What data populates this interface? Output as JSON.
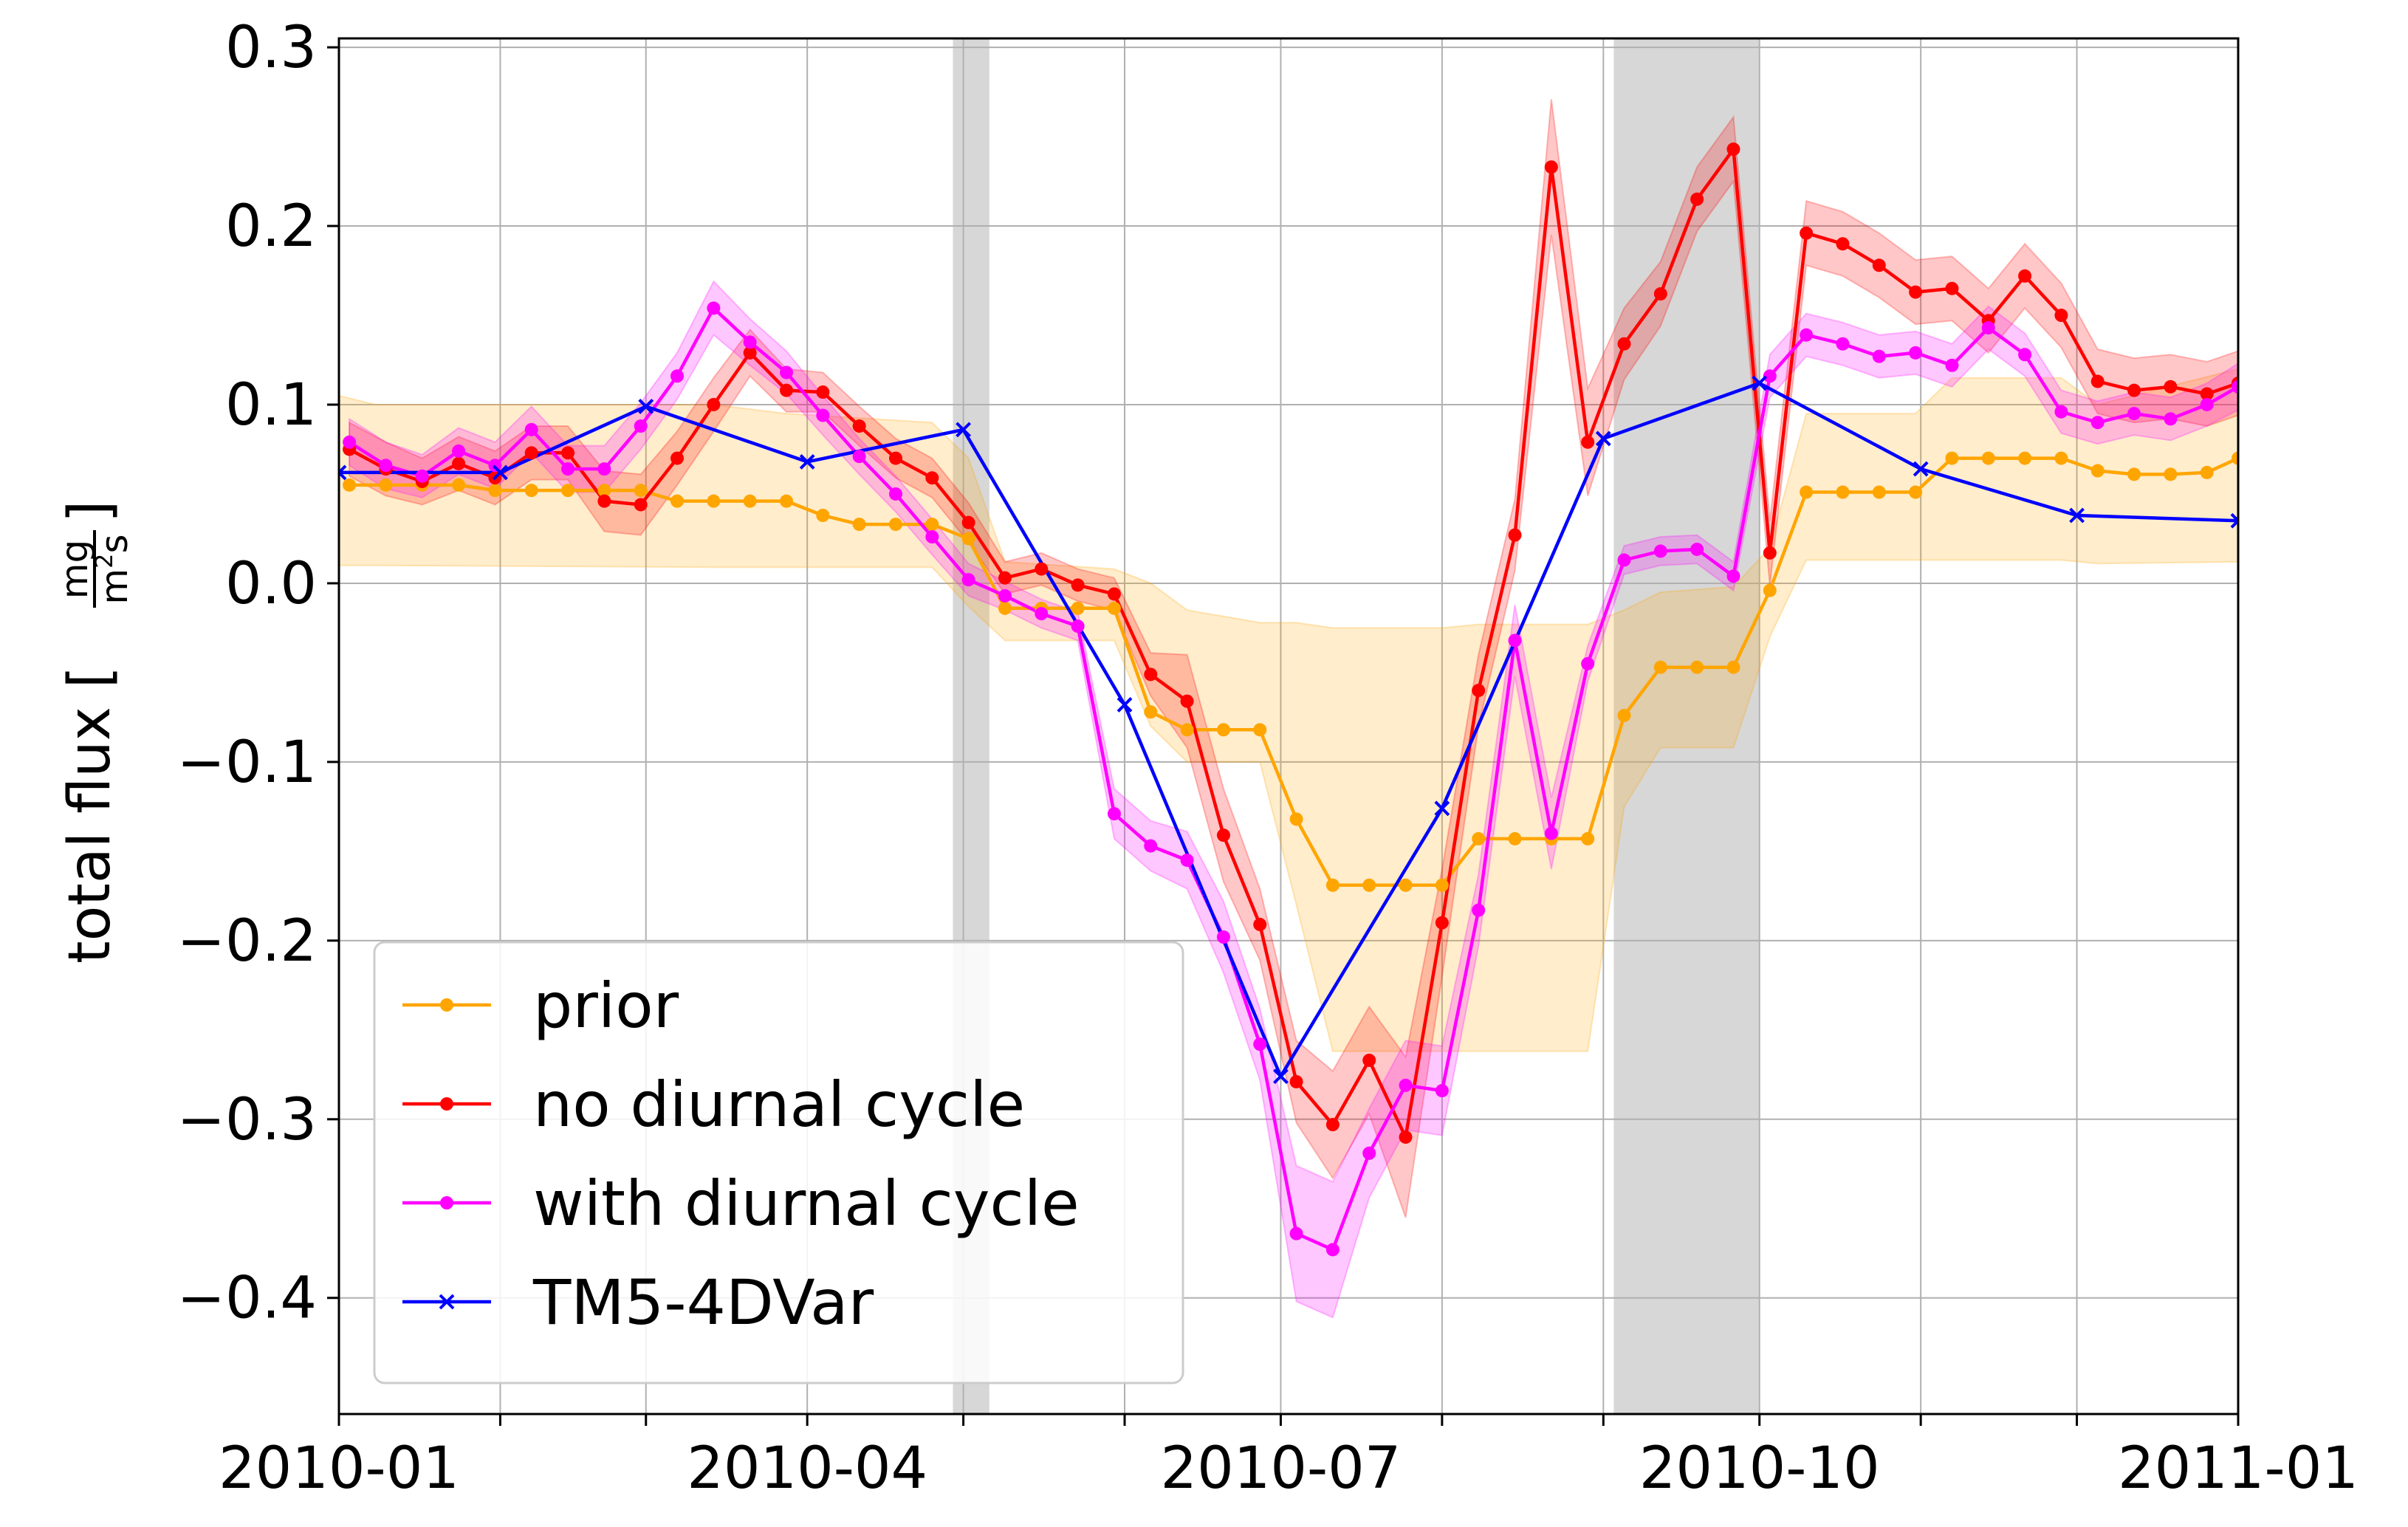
{
  "chart_data": {
    "type": "line",
    "title": "",
    "xlabel": "",
    "ylabel": {
      "prefix": "total flux [",
      "numerator": "mg",
      "denominator_base": "m",
      "denominator_exp": "2",
      "denominator_tail": "s",
      "suffix": "]"
    },
    "xlim": [
      "2010-01-01",
      "2011-01-01"
    ],
    "ylim": [
      -0.465,
      0.305
    ],
    "x_ticks": [
      {
        "date": "2010-01-01",
        "label": "2010-01"
      },
      {
        "date": "2010-04-01",
        "label": "2010-04"
      },
      {
        "date": "2010-07-01",
        "label": "2010-07"
      },
      {
        "date": "2010-10-01",
        "label": "2010-10"
      },
      {
        "date": "2011-01-01",
        "label": "2011-01"
      }
    ],
    "x_minor_ticks": [
      "2010-02-01",
      "2010-03-01",
      "2010-05-01",
      "2010-06-01",
      "2010-08-01",
      "2010-09-01",
      "2010-11-01",
      "2010-12-01"
    ],
    "y_ticks": [
      {
        "value": 0.3,
        "label": "0.3"
      },
      {
        "value": 0.2,
        "label": "0.2"
      },
      {
        "value": 0.1,
        "label": "0.1"
      },
      {
        "value": 0.0,
        "label": "0.0"
      },
      {
        "value": -0.1,
        "label": "−0.1"
      },
      {
        "value": -0.2,
        "label": "−0.2"
      },
      {
        "value": -0.3,
        "label": "−0.3"
      },
      {
        "value": -0.4,
        "label": "−0.4"
      }
    ],
    "grid": true,
    "legend_position": "bottom-left",
    "shaded_periods": [
      {
        "start": "2010-04-29",
        "end": "2010-05-06"
      },
      {
        "start": "2010-09-03",
        "end": "2010-10-01"
      }
    ],
    "series": [
      {
        "name": "prior",
        "color": "#ffa500",
        "marker": "dot",
        "points": [
          [
            "2010-01-03",
            0.055
          ],
          [
            "2010-01-10",
            0.055
          ],
          [
            "2010-01-17",
            0.055
          ],
          [
            "2010-01-24",
            0.055
          ],
          [
            "2010-01-31",
            0.052
          ],
          [
            "2010-02-07",
            0.052
          ],
          [
            "2010-02-14",
            0.052
          ],
          [
            "2010-02-21",
            0.052
          ],
          [
            "2010-02-28",
            0.052
          ],
          [
            "2010-03-07",
            0.046
          ],
          [
            "2010-03-14",
            0.046
          ],
          [
            "2010-03-21",
            0.046
          ],
          [
            "2010-03-28",
            0.046
          ],
          [
            "2010-04-04",
            0.038
          ],
          [
            "2010-04-11",
            0.033
          ],
          [
            "2010-04-18",
            0.033
          ],
          [
            "2010-04-25",
            0.033
          ],
          [
            "2010-05-02",
            0.025
          ],
          [
            "2010-05-09",
            -0.014
          ],
          [
            "2010-05-16",
            -0.014
          ],
          [
            "2010-05-23",
            -0.014
          ],
          [
            "2010-05-30",
            -0.014
          ],
          [
            "2010-06-06",
            -0.072
          ],
          [
            "2010-06-13",
            -0.082
          ],
          [
            "2010-06-20",
            -0.082
          ],
          [
            "2010-06-27",
            -0.082
          ],
          [
            "2010-07-04",
            -0.132
          ],
          [
            "2010-07-11",
            -0.169
          ],
          [
            "2010-07-18",
            -0.169
          ],
          [
            "2010-07-25",
            -0.169
          ],
          [
            "2010-08-01",
            -0.169
          ],
          [
            "2010-08-08",
            -0.143
          ],
          [
            "2010-08-15",
            -0.143
          ],
          [
            "2010-08-22",
            -0.143
          ],
          [
            "2010-08-29",
            -0.143
          ],
          [
            "2010-09-05",
            -0.074
          ],
          [
            "2010-09-12",
            -0.047
          ],
          [
            "2010-09-19",
            -0.047
          ],
          [
            "2010-09-26",
            -0.047
          ],
          [
            "2010-10-03",
            -0.004
          ],
          [
            "2010-10-10",
            0.051
          ],
          [
            "2010-10-17",
            0.051
          ],
          [
            "2010-10-24",
            0.051
          ],
          [
            "2010-10-31",
            0.051
          ],
          [
            "2010-11-07",
            0.07
          ],
          [
            "2010-11-14",
            0.07
          ],
          [
            "2010-11-21",
            0.07
          ],
          [
            "2010-11-28",
            0.07
          ],
          [
            "2010-12-05",
            0.063
          ],
          [
            "2010-12-12",
            0.061
          ],
          [
            "2010-12-19",
            0.061
          ],
          [
            "2010-12-26",
            0.062
          ],
          [
            "2011-01-01",
            0.07
          ]
        ],
        "band": [
          [
            "2010-01-01",
            0.01,
            0.105
          ],
          [
            "2010-01-08",
            0.01,
            0.1
          ],
          [
            "2010-03-14",
            0.009,
            0.1
          ],
          [
            "2010-03-28",
            0.009,
            0.095
          ],
          [
            "2010-04-25",
            0.009,
            0.09
          ],
          [
            "2010-05-02",
            -0.013,
            0.07
          ],
          [
            "2010-05-09",
            -0.032,
            0.012
          ],
          [
            "2010-05-30",
            -0.032,
            0.008
          ],
          [
            "2010-06-06",
            -0.08,
            -0.0
          ],
          [
            "2010-06-13",
            -0.1,
            -0.015
          ],
          [
            "2010-06-27",
            -0.1,
            -0.022
          ],
          [
            "2010-07-04",
            -0.18,
            -0.022
          ],
          [
            "2010-07-11",
            -0.262,
            -0.025
          ],
          [
            "2010-08-01",
            -0.262,
            -0.025
          ],
          [
            "2010-08-08",
            -0.262,
            -0.023
          ],
          [
            "2010-08-29",
            -0.262,
            -0.023
          ],
          [
            "2010-09-05",
            -0.125,
            -0.015
          ],
          [
            "2010-09-12",
            -0.092,
            -0.005
          ],
          [
            "2010-09-26",
            -0.092,
            -0.002
          ],
          [
            "2010-10-03",
            -0.03,
            0.02
          ],
          [
            "2010-10-10",
            0.013,
            0.095
          ],
          [
            "2010-10-31",
            0.013,
            0.095
          ],
          [
            "2010-11-07",
            0.013,
            0.115
          ],
          [
            "2010-11-28",
            0.013,
            0.115
          ],
          [
            "2010-12-05",
            0.011,
            0.1
          ],
          [
            "2011-01-01",
            0.012,
            0.12
          ]
        ]
      },
      {
        "name": "no diurnal cycle",
        "color": "#ff0000",
        "marker": "dot",
        "points": [
          [
            "2010-01-03",
            0.075
          ],
          [
            "2010-01-10",
            0.064
          ],
          [
            "2010-01-17",
            0.057
          ],
          [
            "2010-01-24",
            0.067
          ],
          [
            "2010-01-31",
            0.059
          ],
          [
            "2010-02-07",
            0.073
          ],
          [
            "2010-02-14",
            0.073
          ],
          [
            "2010-02-21",
            0.046
          ],
          [
            "2010-02-28",
            0.044
          ],
          [
            "2010-03-07",
            0.07
          ],
          [
            "2010-03-14",
            0.1
          ],
          [
            "2010-03-21",
            0.129
          ],
          [
            "2010-03-28",
            0.108
          ],
          [
            "2010-04-04",
            0.107
          ],
          [
            "2010-04-11",
            0.088
          ],
          [
            "2010-04-18",
            0.07
          ],
          [
            "2010-04-25",
            0.059
          ],
          [
            "2010-05-02",
            0.034
          ],
          [
            "2010-05-09",
            0.003
          ],
          [
            "2010-05-16",
            0.008
          ],
          [
            "2010-05-23",
            -0.001
          ],
          [
            "2010-05-30",
            -0.006
          ],
          [
            "2010-06-06",
            -0.051
          ],
          [
            "2010-06-13",
            -0.066
          ],
          [
            "2010-06-20",
            -0.141
          ],
          [
            "2010-06-27",
            -0.191
          ],
          [
            "2010-07-04",
            -0.279
          ],
          [
            "2010-07-11",
            -0.303
          ],
          [
            "2010-07-18",
            -0.267
          ],
          [
            "2010-07-25",
            -0.31
          ],
          [
            "2010-08-01",
            -0.19
          ],
          [
            "2010-08-08",
            -0.06
          ],
          [
            "2010-08-15",
            0.027
          ],
          [
            "2010-08-22",
            0.233
          ],
          [
            "2010-08-29",
            0.079
          ],
          [
            "2010-09-05",
            0.134
          ],
          [
            "2010-09-12",
            0.162
          ],
          [
            "2010-09-19",
            0.215
          ],
          [
            "2010-09-26",
            0.243
          ],
          [
            "2010-10-03",
            0.017
          ],
          [
            "2010-10-10",
            0.196
          ],
          [
            "2010-10-17",
            0.19
          ],
          [
            "2010-10-24",
            0.178
          ],
          [
            "2010-10-31",
            0.163
          ],
          [
            "2010-11-07",
            0.165
          ],
          [
            "2010-11-14",
            0.147
          ],
          [
            "2010-11-21",
            0.172
          ],
          [
            "2010-11-28",
            0.15
          ],
          [
            "2010-12-05",
            0.113
          ],
          [
            "2010-12-12",
            0.108
          ],
          [
            "2010-12-19",
            0.11
          ],
          [
            "2010-12-26",
            0.106
          ],
          [
            "2011-01-01",
            0.112
          ],
          [
            "2011-01-03",
            0.124
          ]
        ],
        "band_half_width": [
          0.015,
          0.015,
          0.013,
          0.015,
          0.015,
          0.015,
          0.015,
          0.017,
          0.017,
          0.015,
          0.015,
          0.013,
          0.012,
          0.011,
          0.011,
          0.011,
          0.011,
          0.011,
          0.009,
          0.009,
          0.009,
          0.009,
          0.012,
          0.026,
          0.026,
          0.02,
          0.023,
          0.03,
          0.03,
          0.045,
          0.03,
          0.02,
          0.02,
          0.038,
          0.03,
          0.02,
          0.018,
          0.018,
          0.018,
          0.018,
          0.018,
          0.018,
          0.018,
          0.018,
          0.018,
          0.018,
          0.018,
          0.018,
          0.018,
          0.018,
          0.018,
          0.018,
          0.018,
          0.02
        ]
      },
      {
        "name": "with diurnal cycle",
        "color": "#ff00ff",
        "marker": "dot",
        "points": [
          [
            "2010-01-03",
            0.079
          ],
          [
            "2010-01-10",
            0.066
          ],
          [
            "2010-01-17",
            0.06
          ],
          [
            "2010-01-24",
            0.074
          ],
          [
            "2010-01-31",
            0.066
          ],
          [
            "2010-02-07",
            0.086
          ],
          [
            "2010-02-14",
            0.064
          ],
          [
            "2010-02-21",
            0.064
          ],
          [
            "2010-02-28",
            0.088
          ],
          [
            "2010-03-07",
            0.116
          ],
          [
            "2010-03-14",
            0.154
          ],
          [
            "2010-03-21",
            0.135
          ],
          [
            "2010-03-28",
            0.118
          ],
          [
            "2010-04-04",
            0.094
          ],
          [
            "2010-04-11",
            0.071
          ],
          [
            "2010-04-18",
            0.05
          ],
          [
            "2010-04-25",
            0.026
          ],
          [
            "2010-05-02",
            0.002
          ],
          [
            "2010-05-09",
            -0.007
          ],
          [
            "2010-05-16",
            -0.017
          ],
          [
            "2010-05-23",
            -0.024
          ],
          [
            "2010-05-30",
            -0.129
          ],
          [
            "2010-06-06",
            -0.147
          ],
          [
            "2010-06-13",
            -0.155
          ],
          [
            "2010-06-20",
            -0.198
          ],
          [
            "2010-06-27",
            -0.258
          ],
          [
            "2010-07-04",
            -0.364
          ],
          [
            "2010-07-11",
            -0.373
          ],
          [
            "2010-07-18",
            -0.319
          ],
          [
            "2010-07-25",
            -0.281
          ],
          [
            "2010-08-01",
            -0.284
          ],
          [
            "2010-08-08",
            -0.183
          ],
          [
            "2010-08-15",
            -0.032
          ],
          [
            "2010-08-22",
            -0.14
          ],
          [
            "2010-08-29",
            -0.045
          ],
          [
            "2010-09-05",
            0.013
          ],
          [
            "2010-09-12",
            0.018
          ],
          [
            "2010-09-19",
            0.019
          ],
          [
            "2010-09-26",
            0.004
          ],
          [
            "2010-10-03",
            0.116
          ],
          [
            "2010-10-10",
            0.139
          ],
          [
            "2010-10-17",
            0.134
          ],
          [
            "2010-10-24",
            0.127
          ],
          [
            "2010-10-31",
            0.129
          ],
          [
            "2010-11-07",
            0.122
          ],
          [
            "2010-11-14",
            0.143
          ],
          [
            "2010-11-21",
            0.128
          ],
          [
            "2010-11-28",
            0.096
          ],
          [
            "2010-12-05",
            0.09
          ],
          [
            "2010-12-12",
            0.095
          ],
          [
            "2010-12-19",
            0.092
          ],
          [
            "2010-12-26",
            0.1
          ],
          [
            "2011-01-01",
            0.11
          ]
        ],
        "band_half_width": [
          0.013,
          0.013,
          0.012,
          0.013,
          0.013,
          0.013,
          0.013,
          0.013,
          0.013,
          0.013,
          0.015,
          0.013,
          0.012,
          0.011,
          0.01,
          0.01,
          0.01,
          0.009,
          0.008,
          0.008,
          0.008,
          0.014,
          0.014,
          0.016,
          0.02,
          0.02,
          0.038,
          0.038,
          0.025,
          0.025,
          0.025,
          0.02,
          0.02,
          0.02,
          0.01,
          0.008,
          0.008,
          0.008,
          0.008,
          0.012,
          0.012,
          0.012,
          0.012,
          0.012,
          0.012,
          0.012,
          0.012,
          0.012,
          0.012,
          0.012,
          0.012,
          0.012,
          0.013
        ]
      },
      {
        "name": "TM5-4DVar",
        "color": "#0000ff",
        "marker": "x",
        "points": [
          [
            "2010-01-01",
            0.062
          ],
          [
            "2010-02-01",
            0.062
          ],
          [
            "2010-03-01",
            0.099
          ],
          [
            "2010-04-01",
            0.068
          ],
          [
            "2010-05-01",
            0.086
          ],
          [
            "2010-06-01",
            -0.068
          ],
          [
            "2010-07-01",
            -0.276
          ],
          [
            "2010-08-01",
            -0.126
          ],
          [
            "2010-09-01",
            0.081
          ],
          [
            "2010-10-01",
            0.112
          ],
          [
            "2010-11-01",
            0.064
          ],
          [
            "2010-12-01",
            0.038
          ],
          [
            "2011-01-01",
            0.035
          ]
        ]
      }
    ]
  }
}
